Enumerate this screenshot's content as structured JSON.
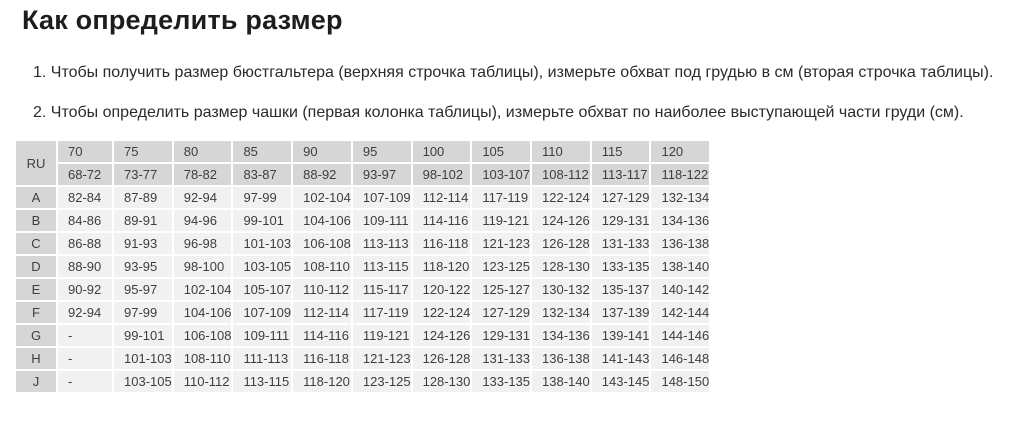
{
  "page": {
    "title": "Как определить размер",
    "instructions": [
      "1. Чтобы получить размер бюстгальтера (верхняя строчка таблицы), измерьте обхват под грудью в см (вторая строчка таблицы).",
      "2. Чтобы определить размер чашки (первая колонка таблицы), измерьте обхват по наиболее выступающей части груди (см)."
    ]
  },
  "table": {
    "corner_label": "RU",
    "band_sizes": [
      "70",
      "75",
      "80",
      "85",
      "90",
      "95",
      "100",
      "105",
      "110",
      "115",
      "120"
    ],
    "underbust_ranges": [
      "68-72",
      "73-77",
      "78-82",
      "83-87",
      "88-92",
      "93-97",
      "98-102",
      "103-107",
      "108-112",
      "113-117",
      "118-122"
    ],
    "cup_rows": [
      {
        "cup": "A",
        "values": [
          "82-84",
          "87-89",
          "92-94",
          "97-99",
          "102-104",
          "107-109",
          "112-114",
          "117-119",
          "122-124",
          "127-129",
          "132-134"
        ]
      },
      {
        "cup": "B",
        "values": [
          "84-86",
          "89-91",
          "94-96",
          "99-101",
          "104-106",
          "109-111",
          "114-116",
          "119-121",
          "124-126",
          "129-131",
          "134-136"
        ]
      },
      {
        "cup": "C",
        "values": [
          "86-88",
          "91-93",
          "96-98",
          "101-103",
          "106-108",
          "113-113",
          "116-118",
          "121-123",
          "126-128",
          "131-133",
          "136-138"
        ]
      },
      {
        "cup": "D",
        "values": [
          "88-90",
          "93-95",
          "98-100",
          "103-105",
          "108-110",
          "113-115",
          "118-120",
          "123-125",
          "128-130",
          "133-135",
          "138-140"
        ]
      },
      {
        "cup": "E",
        "values": [
          "90-92",
          "95-97",
          "102-104",
          "105-107",
          "110-112",
          "115-117",
          "120-122",
          "125-127",
          "130-132",
          "135-137",
          "140-142"
        ]
      },
      {
        "cup": "F",
        "values": [
          "92-94",
          "97-99",
          "104-106",
          "107-109",
          "112-114",
          "117-119",
          "122-124",
          "127-129",
          "132-134",
          "137-139",
          "142-144"
        ]
      },
      {
        "cup": "G",
        "values": [
          "-",
          "99-101",
          "106-108",
          "109-111",
          "114-116",
          "119-121",
          "124-126",
          "129-131",
          "134-136",
          "139-141",
          "144-146"
        ]
      },
      {
        "cup": "H",
        "values": [
          "-",
          "101-103",
          "108-110",
          "111-113",
          "116-118",
          "121-123",
          "126-128",
          "131-133",
          "136-138",
          "141-143",
          "146-148"
        ]
      },
      {
        "cup": "J",
        "values": [
          "-",
          "103-105",
          "110-112",
          "113-115",
          "118-120",
          "123-125",
          "128-130",
          "133-135",
          "138-140",
          "143-145",
          "148-150"
        ]
      }
    ]
  },
  "colors": {
    "header_bg": "#d6d6d6",
    "cell_bg": "#f1f1f1",
    "cell_text": "#3e3e3e",
    "title_text": "#1d1d1d",
    "body_text": "#2b2b2b",
    "gap": "#ffffff"
  }
}
